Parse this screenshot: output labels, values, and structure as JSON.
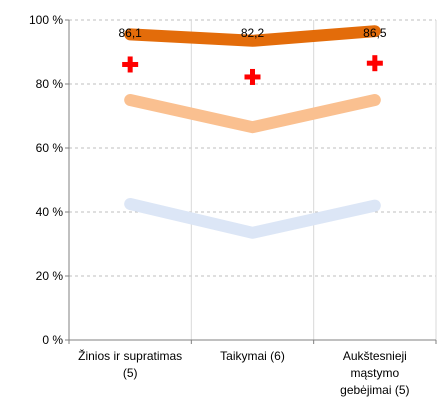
{
  "chart_data": {
    "type": "line",
    "title": "",
    "xlabel": "",
    "ylabel": "",
    "ylim": [
      0,
      100
    ],
    "y_ticks": [
      "0 %",
      "20 %",
      "40 %",
      "60 %",
      "80 %",
      "100 %"
    ],
    "grid": true,
    "legend": "none",
    "categories": [
      [
        "Žinios ir supratimas",
        "(5)"
      ],
      [
        "Taikymai (6)"
      ],
      [
        "Aukštesnieji",
        "mąstymo",
        "gebėjimai (5)"
      ]
    ],
    "series": [
      {
        "values": [
          95.5,
          93.5,
          96.5
        ],
        "color": "#E36C0A",
        "style": "thick-line"
      },
      {
        "values": [
          86.1,
          82.2,
          86.5
        ],
        "color": "#FF0000",
        "style": "cross-marker",
        "labels": [
          "86,1",
          "82,2",
          "86,5"
        ]
      },
      {
        "values": [
          75,
          66.5,
          75
        ],
        "color": "#FAC090",
        "style": "thick-line"
      },
      {
        "values": [
          42.5,
          33.5,
          42
        ],
        "color": "#DCE6F6",
        "style": "thick-line"
      }
    ]
  }
}
